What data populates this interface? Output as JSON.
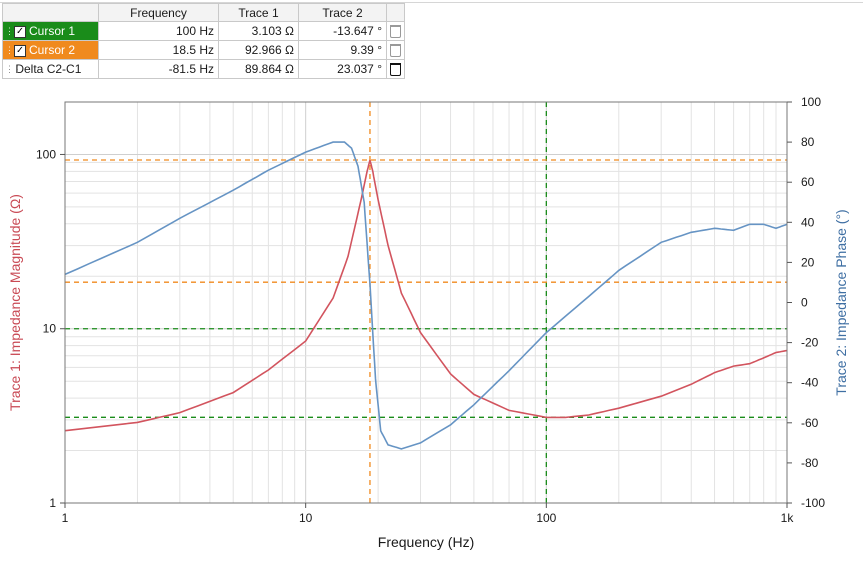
{
  "cursor_table": {
    "headers": {
      "name": "",
      "frequency": "Frequency",
      "trace1": "Trace 1",
      "trace2": "Trace 2"
    },
    "rows": [
      {
        "name": "Cursor 1",
        "frequency": "100 Hz",
        "trace1": "3.103 Ω",
        "trace2": "-13.647 °",
        "checked": true,
        "color": "#1a8c1a"
      },
      {
        "name": "Cursor 2",
        "frequency": "18.5 Hz",
        "trace1": "92.966 Ω",
        "trace2": "9.39 °",
        "checked": true,
        "color": "#f08a1e"
      },
      {
        "name": "Delta C2-C1",
        "frequency": "-81.5 Hz",
        "trace1": "89.864 Ω",
        "trace2": "23.037 °"
      }
    ],
    "check_mark": "✓",
    "grip_icon": "⋮⋮"
  },
  "chart_data": {
    "type": "line",
    "xlabel": "Frequency (Hz)",
    "ylabel_left": "Trace 1: Impedance Magnitude (Ω)",
    "ylabel_right": "Trace 2: Impedance Phase (°)",
    "x_scale": "log",
    "xlim": [
      1,
      1000
    ],
    "x_ticks": [
      {
        "v": 1,
        "label": "1"
      },
      {
        "v": 10,
        "label": "10"
      },
      {
        "v": 100,
        "label": "100"
      },
      {
        "v": 1000,
        "label": "1k"
      }
    ],
    "y_left_scale": "log",
    "y_left_lim": [
      1,
      200
    ],
    "y_left_ticks": [
      {
        "v": 1,
        "label": "1"
      },
      {
        "v": 10,
        "label": "10"
      },
      {
        "v": 100,
        "label": "100"
      }
    ],
    "y_right_lim": [
      -100,
      100
    ],
    "y_right_ticks": [
      {
        "v": 100,
        "label": "100"
      },
      {
        "v": 80,
        "label": "80"
      },
      {
        "v": 60,
        "label": "60"
      },
      {
        "v": 40,
        "label": "40"
      },
      {
        "v": 20,
        "label": "20"
      },
      {
        "v": 0,
        "label": "0"
      },
      {
        "v": -20,
        "label": "-20"
      },
      {
        "v": -40,
        "label": "-40"
      },
      {
        "v": -60,
        "label": "-60"
      },
      {
        "v": -80,
        "label": "-80"
      },
      {
        "v": -100,
        "label": "-100"
      }
    ],
    "grid": true,
    "series": [
      {
        "name": "Trace 1",
        "axis": "left",
        "color": "#d2545e",
        "points": [
          [
            1,
            2.6
          ],
          [
            2,
            2.9
          ],
          [
            3,
            3.3
          ],
          [
            5,
            4.3
          ],
          [
            7,
            5.8
          ],
          [
            10,
            8.5
          ],
          [
            13,
            15
          ],
          [
            15,
            26
          ],
          [
            17,
            55
          ],
          [
            18,
            80
          ],
          [
            18.5,
            93
          ],
          [
            19,
            80
          ],
          [
            20,
            55
          ],
          [
            22,
            30
          ],
          [
            25,
            16
          ],
          [
            30,
            9.5
          ],
          [
            40,
            5.5
          ],
          [
            50,
            4.2
          ],
          [
            70,
            3.4
          ],
          [
            100,
            3.1
          ],
          [
            120,
            3.1
          ],
          [
            150,
            3.2
          ],
          [
            200,
            3.5
          ],
          [
            300,
            4.1
          ],
          [
            400,
            4.8
          ],
          [
            500,
            5.6
          ],
          [
            600,
            6.1
          ],
          [
            700,
            6.3
          ],
          [
            800,
            6.8
          ],
          [
            900,
            7.3
          ],
          [
            1000,
            7.5
          ]
        ]
      },
      {
        "name": "Trace 2",
        "axis": "right",
        "color": "#6694c4",
        "points": [
          [
            1,
            14
          ],
          [
            2,
            30
          ],
          [
            3,
            42
          ],
          [
            5,
            56
          ],
          [
            7,
            66
          ],
          [
            10,
            75
          ],
          [
            13,
            80
          ],
          [
            14.5,
            80
          ],
          [
            15.5,
            77
          ],
          [
            16.5,
            68
          ],
          [
            17.5,
            50
          ],
          [
            18.5,
            9
          ],
          [
            19.5,
            -38
          ],
          [
            20.5,
            -64
          ],
          [
            22,
            -71
          ],
          [
            25,
            -73
          ],
          [
            30,
            -70
          ],
          [
            40,
            -61
          ],
          [
            50,
            -51
          ],
          [
            70,
            -34
          ],
          [
            100,
            -15
          ],
          [
            150,
            3
          ],
          [
            200,
            16
          ],
          [
            300,
            30
          ],
          [
            400,
            35
          ],
          [
            500,
            37
          ],
          [
            600,
            36
          ],
          [
            700,
            39
          ],
          [
            800,
            39
          ],
          [
            900,
            37
          ],
          [
            1000,
            39
          ]
        ]
      }
    ],
    "cursors": [
      {
        "name": "Cursor 1",
        "color": "#1a8c1a",
        "x": 100,
        "y_left": 3.103,
        "y_left_2": 10
      },
      {
        "name": "Cursor 2",
        "color": "#f08a1e",
        "x": 18.5,
        "y_left": 92.966,
        "y_left_2": 18.5
      }
    ]
  }
}
